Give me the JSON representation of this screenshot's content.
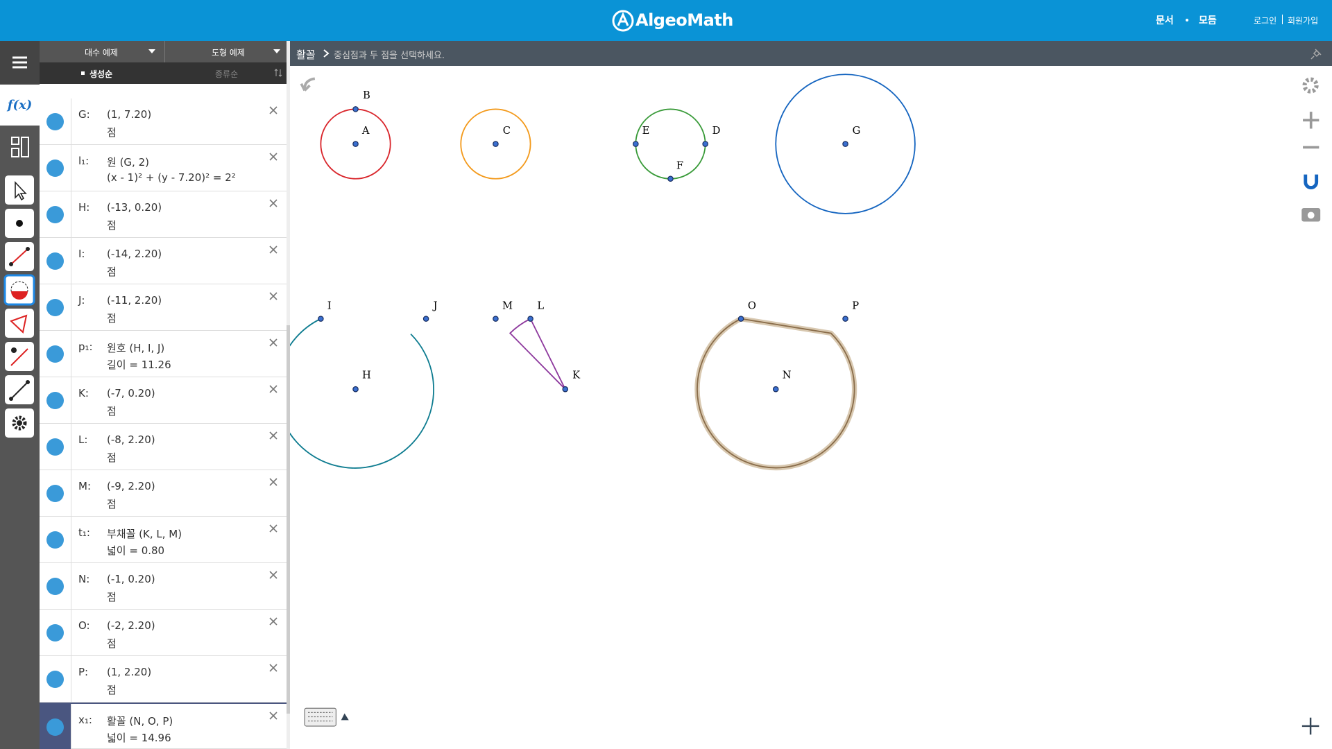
{
  "header": {
    "logo": "AlgeoMath",
    "nav": [
      "문서",
      "모듬"
    ],
    "auth": [
      "로그인",
      "회원가입"
    ]
  },
  "sidebar": {
    "fx": "f(x)"
  },
  "panel": {
    "tabs": [
      "대수 예제",
      "도형 예제"
    ],
    "sort": [
      "생성순",
      "종류순"
    ],
    "items": [
      {
        "name": "G:",
        "def": "(1, 7.20)",
        "sub": "점"
      },
      {
        "name": "l₁:",
        "def": "원 (G, 2)",
        "sub": "(x - 1)² + (y - 7.20)² = 2²"
      },
      {
        "name": "H:",
        "def": "(-13, 0.20)",
        "sub": "점"
      },
      {
        "name": "I:",
        "def": "(-14, 2.20)",
        "sub": "점"
      },
      {
        "name": "J:",
        "def": "(-11, 2.20)",
        "sub": "점"
      },
      {
        "name": "p₁:",
        "def": "원호 (H, I, J)",
        "sub": "길이 = 11.26"
      },
      {
        "name": "K:",
        "def": "(-7, 0.20)",
        "sub": "점"
      },
      {
        "name": "L:",
        "def": "(-8, 2.20)",
        "sub": "점"
      },
      {
        "name": "M:",
        "def": "(-9, 2.20)",
        "sub": "점"
      },
      {
        "name": "t₁:",
        "def": "부채꼴 (K, L, M)",
        "sub": "넓이 = 0.80"
      },
      {
        "name": "N:",
        "def": "(-1, 0.20)",
        "sub": "점"
      },
      {
        "name": "O:",
        "def": "(-2, 2.20)",
        "sub": "점"
      },
      {
        "name": "P:",
        "def": "(1, 2.20)",
        "sub": "점"
      },
      {
        "name": "x₁:",
        "def": "활꼴 (N, O, P)",
        "sub": "넓이 = 14.96"
      }
    ]
  },
  "breadcrumb": {
    "tool": "활꼴",
    "hint": "중심점과 두 점을 선택하세요."
  },
  "canvas": {
    "labels": [
      "A",
      "B",
      "C",
      "D",
      "E",
      "F",
      "G",
      "H",
      "I",
      "J",
      "K",
      "L",
      "M",
      "N",
      "O",
      "P"
    ]
  }
}
